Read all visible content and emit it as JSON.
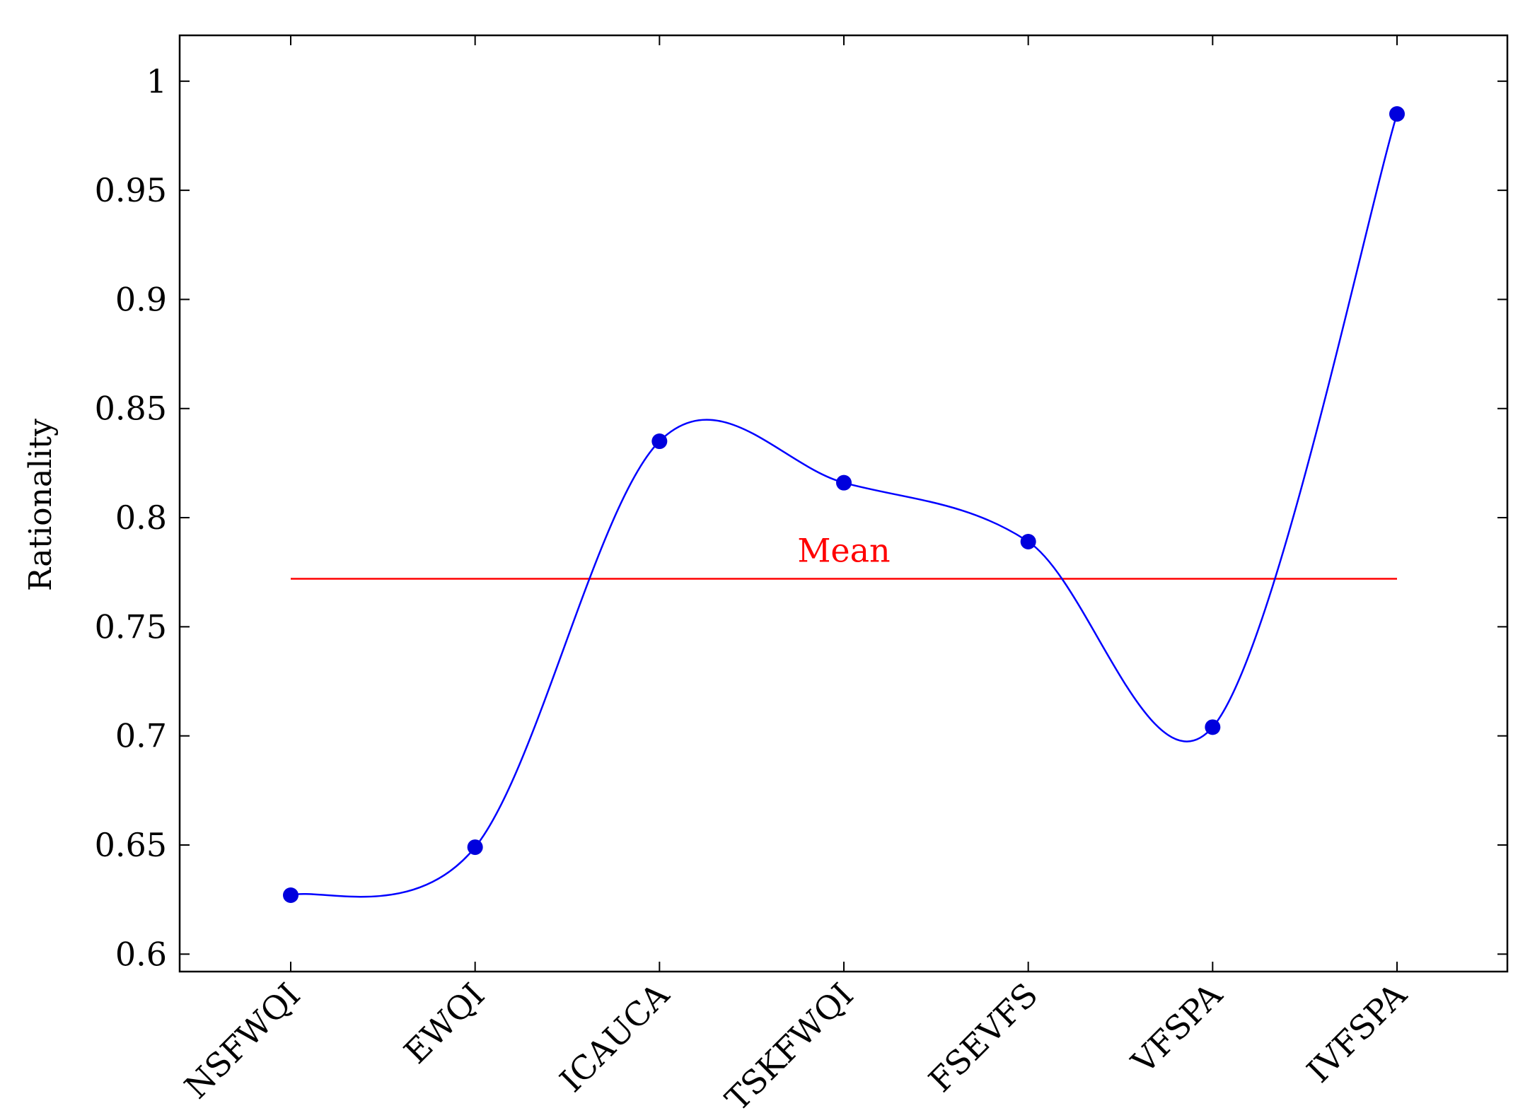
{
  "chart_data": {
    "type": "line",
    "categories": [
      "NSFWQI",
      "EWQI",
      "ICAUCA",
      "TSKFWQI",
      "FSEVFS",
      "VFSPA",
      "IVFSPA"
    ],
    "series": [
      {
        "values": [
          0.627,
          0.649,
          0.835,
          0.816,
          0.789,
          0.704,
          0.985
        ],
        "color": "#0000ff",
        "marker_color": "#0000dd",
        "smooth": true
      }
    ],
    "mean": {
      "label": "Mean",
      "value": 0.772,
      "color": "#ff0000"
    },
    "ylabel": "Rationality",
    "xlabel": "",
    "title": "",
    "ylim": [
      0.592,
      1.021
    ],
    "yticks": [
      0.6,
      0.65,
      0.7,
      0.75,
      0.8,
      0.85,
      0.9,
      0.95,
      1
    ],
    "ytick_labels": [
      "0.6",
      "0.65",
      "0.7",
      "0.75",
      "0.8",
      "0.85",
      "0.9",
      "0.95",
      "1"
    ],
    "grid": false,
    "legend": "none"
  }
}
